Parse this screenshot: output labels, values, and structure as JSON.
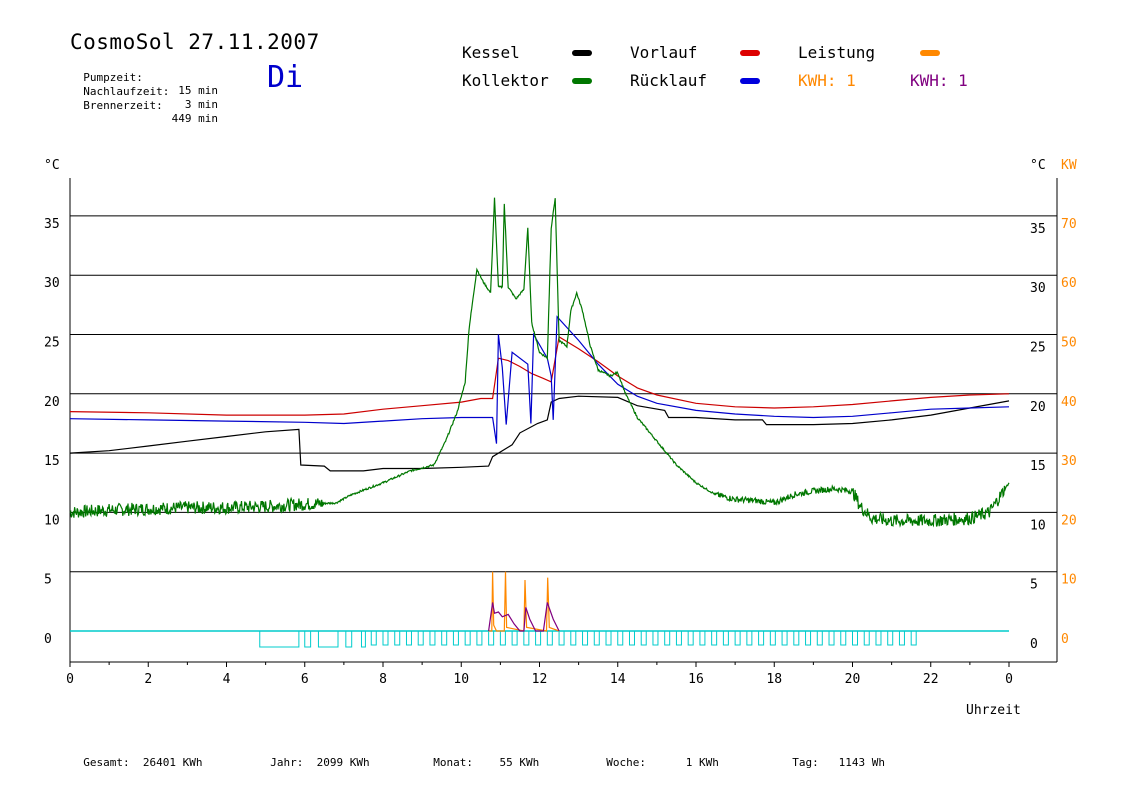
{
  "header": {
    "title": "CosmoSol 27.11.2007",
    "day": "Di",
    "stats": [
      {
        "label": "Pumpzeit:",
        "value": "15 min"
      },
      {
        "label": "Nachlaufzeit:",
        "value": "3 min"
      },
      {
        "label": "Brennerzeit:",
        "value": "449 min"
      }
    ]
  },
  "legend": {
    "kessel": "Kessel",
    "kollektor": "Kollektor",
    "vorlauf": "Vorlauf",
    "ruecklauf": "Rücklauf",
    "leistung": "Leistung",
    "kwh1": "KWH: 1",
    "kwh2": "KWH: 1"
  },
  "footer": [
    {
      "label": "Gesamt:",
      "value": "26401 KWh"
    },
    {
      "label": "Jahr:",
      "value": "2099 KWh"
    },
    {
      "label": "Monat:",
      "value": "55 KWh"
    },
    {
      "label": "Woche:",
      "value": "1 KWh"
    },
    {
      "label": "Tag:",
      "value": "1143 Wh"
    }
  ],
  "colors": {
    "kessel": "#000000",
    "kollektor": "#007700",
    "vorlauf": "#cc0000",
    "ruecklauf": "#0000cc",
    "leistung": "#ff8800",
    "kwh2": "#800080",
    "pump": "#00cccc"
  },
  "chart_data": {
    "type": "line",
    "ylabel_left": "°C",
    "ylabel_right_1": "°C",
    "ylabel_right_2": "KW",
    "xlabel": "Uhrzeit",
    "xlim": [
      0,
      24
    ],
    "ylim": [
      -2.7,
      38.8
    ],
    "x_ticks": [
      "0",
      "2",
      "4",
      "6",
      "8",
      "10",
      "12",
      "14",
      "16",
      "18",
      "20",
      "22",
      "0"
    ],
    "y_ticks_left": [
      0,
      5,
      10,
      15,
      20,
      25,
      30,
      35
    ],
    "y_ticks_right": [
      0,
      5,
      10,
      15,
      20,
      25,
      30,
      35
    ],
    "y_ticks_kw": [
      0,
      10,
      20,
      30,
      40,
      50,
      60,
      70
    ],
    "grid": "horizontal",
    "series": [
      {
        "name": "Kessel",
        "points": [
          [
            0,
            15.0
          ],
          [
            1,
            15.2
          ],
          [
            2,
            15.6
          ],
          [
            3,
            16.0
          ],
          [
            4,
            16.4
          ],
          [
            5,
            16.8
          ],
          [
            5.85,
            17.0
          ],
          [
            5.9,
            14.0
          ],
          [
            6.5,
            13.9
          ],
          [
            6.65,
            13.5
          ],
          [
            7.5,
            13.5
          ],
          [
            8,
            13.7
          ],
          [
            9,
            13.7
          ],
          [
            10,
            13.8
          ],
          [
            10.7,
            13.9
          ],
          [
            10.8,
            14.7
          ],
          [
            11.3,
            15.7
          ],
          [
            11.5,
            16.7
          ],
          [
            11.95,
            17.5
          ],
          [
            12.2,
            17.8
          ],
          [
            12.3,
            19.3
          ],
          [
            12.5,
            19.6
          ],
          [
            13,
            19.8
          ],
          [
            14,
            19.7
          ],
          [
            14.5,
            19.0
          ],
          [
            15.2,
            18.6
          ],
          [
            15.3,
            18.0
          ],
          [
            16,
            18.0
          ],
          [
            17,
            17.8
          ],
          [
            17.7,
            17.8
          ],
          [
            17.8,
            17.4
          ],
          [
            19,
            17.4
          ],
          [
            20,
            17.5
          ],
          [
            21,
            17.8
          ],
          [
            22,
            18.2
          ],
          [
            23,
            18.8
          ],
          [
            24,
            19.4
          ]
        ]
      },
      {
        "name": "Vorlauf",
        "points": [
          [
            0,
            18.5
          ],
          [
            2,
            18.4
          ],
          [
            4,
            18.2
          ],
          [
            6,
            18.2
          ],
          [
            7,
            18.3
          ],
          [
            8,
            18.7
          ],
          [
            9,
            19.0
          ],
          [
            10,
            19.3
          ],
          [
            10.5,
            19.6
          ],
          [
            10.8,
            19.6
          ],
          [
            10.95,
            23.0
          ],
          [
            11.2,
            22.8
          ],
          [
            11.5,
            22.3
          ],
          [
            11.8,
            21.7
          ],
          [
            12.1,
            21.3
          ],
          [
            12.3,
            21.0
          ],
          [
            12.5,
            24.8
          ],
          [
            13,
            23.8
          ],
          [
            13.5,
            22.7
          ],
          [
            14,
            21.5
          ],
          [
            14.5,
            20.5
          ],
          [
            15,
            19.9
          ],
          [
            16,
            19.2
          ],
          [
            17,
            18.9
          ],
          [
            18,
            18.8
          ],
          [
            19,
            18.9
          ],
          [
            20,
            19.1
          ],
          [
            21,
            19.4
          ],
          [
            22,
            19.7
          ],
          [
            23,
            19.9
          ],
          [
            24,
            20.0
          ]
        ]
      },
      {
        "name": "Rücklauf",
        "points": [
          [
            0,
            17.9
          ],
          [
            2,
            17.8
          ],
          [
            4,
            17.7
          ],
          [
            6,
            17.6
          ],
          [
            7,
            17.5
          ],
          [
            8,
            17.7
          ],
          [
            9,
            17.9
          ],
          [
            10,
            18.0
          ],
          [
            10.8,
            18.0
          ],
          [
            10.9,
            15.8
          ],
          [
            10.95,
            25.0
          ],
          [
            11.05,
            22.2
          ],
          [
            11.15,
            17.4
          ],
          [
            11.3,
            23.5
          ],
          [
            11.7,
            22.5
          ],
          [
            11.78,
            17.5
          ],
          [
            11.85,
            25.0
          ],
          [
            12.2,
            23.0
          ],
          [
            12.3,
            21.5
          ],
          [
            12.35,
            17.8
          ],
          [
            12.45,
            26.5
          ],
          [
            13,
            24.5
          ],
          [
            13.5,
            22.5
          ],
          [
            14,
            20.8
          ],
          [
            14.5,
            19.8
          ],
          [
            15,
            19.2
          ],
          [
            16,
            18.6
          ],
          [
            17,
            18.3
          ],
          [
            18,
            18.1
          ],
          [
            19,
            18.0
          ],
          [
            20,
            18.1
          ],
          [
            21,
            18.4
          ],
          [
            22,
            18.7
          ],
          [
            23,
            18.8
          ],
          [
            24,
            18.9
          ]
        ]
      },
      {
        "name": "Kollektor",
        "points": [
          [
            0,
            10.0
          ],
          [
            1,
            10.2
          ],
          [
            2,
            10.3
          ],
          [
            3,
            10.4
          ],
          [
            4,
            10.4
          ],
          [
            5,
            10.5
          ],
          [
            6,
            10.7
          ],
          [
            6.8,
            10.8
          ],
          [
            7.2,
            11.5
          ],
          [
            8,
            12.5
          ],
          [
            8.7,
            13.5
          ],
          [
            9.3,
            14.0
          ],
          [
            9.6,
            16.0
          ],
          [
            9.9,
            18.5
          ],
          [
            10.1,
            21.0
          ],
          [
            10.2,
            25.5
          ],
          [
            10.4,
            30.5
          ],
          [
            10.55,
            29.5
          ],
          [
            10.75,
            28.5
          ],
          [
            10.85,
            36.5
          ],
          [
            10.95,
            29.0
          ],
          [
            11.05,
            29.0
          ],
          [
            11.1,
            36.0
          ],
          [
            11.2,
            29.0
          ],
          [
            11.4,
            28.0
          ],
          [
            11.6,
            28.8
          ],
          [
            11.7,
            34.0
          ],
          [
            11.8,
            26.0
          ],
          [
            12.0,
            23.5
          ],
          [
            12.2,
            23.0
          ],
          [
            12.3,
            34.0
          ],
          [
            12.4,
            36.5
          ],
          [
            12.5,
            24.5
          ],
          [
            12.7,
            24.0
          ],
          [
            12.8,
            27.0
          ],
          [
            12.95,
            28.5
          ],
          [
            13.1,
            27.0
          ],
          [
            13.3,
            24.0
          ],
          [
            13.5,
            22.0
          ],
          [
            13.8,
            21.5
          ],
          [
            14.0,
            21.8
          ],
          [
            14.2,
            20.0
          ],
          [
            14.5,
            18.0
          ],
          [
            15,
            16.0
          ],
          [
            15.5,
            14.0
          ],
          [
            16,
            12.5
          ],
          [
            16.5,
            11.5
          ],
          [
            17,
            11.1
          ],
          [
            17.5,
            11.0
          ],
          [
            18,
            10.8
          ],
          [
            18.5,
            11.5
          ],
          [
            19,
            11.8
          ],
          [
            19.5,
            12.0
          ],
          [
            20,
            11.8
          ],
          [
            20.2,
            10.5
          ],
          [
            20.5,
            9.5
          ],
          [
            21,
            9.3
          ],
          [
            22,
            9.3
          ],
          [
            23,
            9.5
          ],
          [
            23.5,
            10.0
          ],
          [
            23.8,
            11.5
          ],
          [
            24,
            12.5
          ]
        ]
      },
      {
        "name": "Leistung",
        "points": [
          [
            10.7,
            0
          ],
          [
            10.78,
            0
          ],
          [
            10.8,
            5.0
          ],
          [
            10.83,
            0.5
          ],
          [
            10.9,
            0
          ],
          [
            11.1,
            0
          ],
          [
            11.13,
            5.0
          ],
          [
            11.16,
            0.3
          ],
          [
            11.6,
            0
          ],
          [
            11.63,
            4.3
          ],
          [
            11.67,
            0.3
          ],
          [
            12.18,
            0
          ],
          [
            12.21,
            4.5
          ],
          [
            12.25,
            0.3
          ],
          [
            12.5,
            0
          ]
        ]
      },
      {
        "name": "KWH",
        "points": [
          [
            10.7,
            0
          ],
          [
            10.8,
            2.4
          ],
          [
            10.85,
            1.5
          ],
          [
            10.95,
            1.6
          ],
          [
            11.05,
            1.2
          ],
          [
            11.2,
            1.4
          ],
          [
            11.35,
            0.6
          ],
          [
            11.5,
            0
          ],
          [
            11.6,
            0
          ],
          [
            11.65,
            2.0
          ],
          [
            11.75,
            1.0
          ],
          [
            11.9,
            0
          ],
          [
            12.1,
            0
          ],
          [
            12.2,
            2.4
          ],
          [
            12.35,
            1.0
          ],
          [
            12.5,
            0
          ]
        ]
      }
    ],
    "pump_boxes": [
      [
        4.85,
        5.85
      ],
      [
        6.0,
        6.15
      ],
      [
        6.35,
        6.85
      ],
      [
        7.05,
        7.2
      ],
      [
        7.45,
        7.55
      ]
    ]
  }
}
